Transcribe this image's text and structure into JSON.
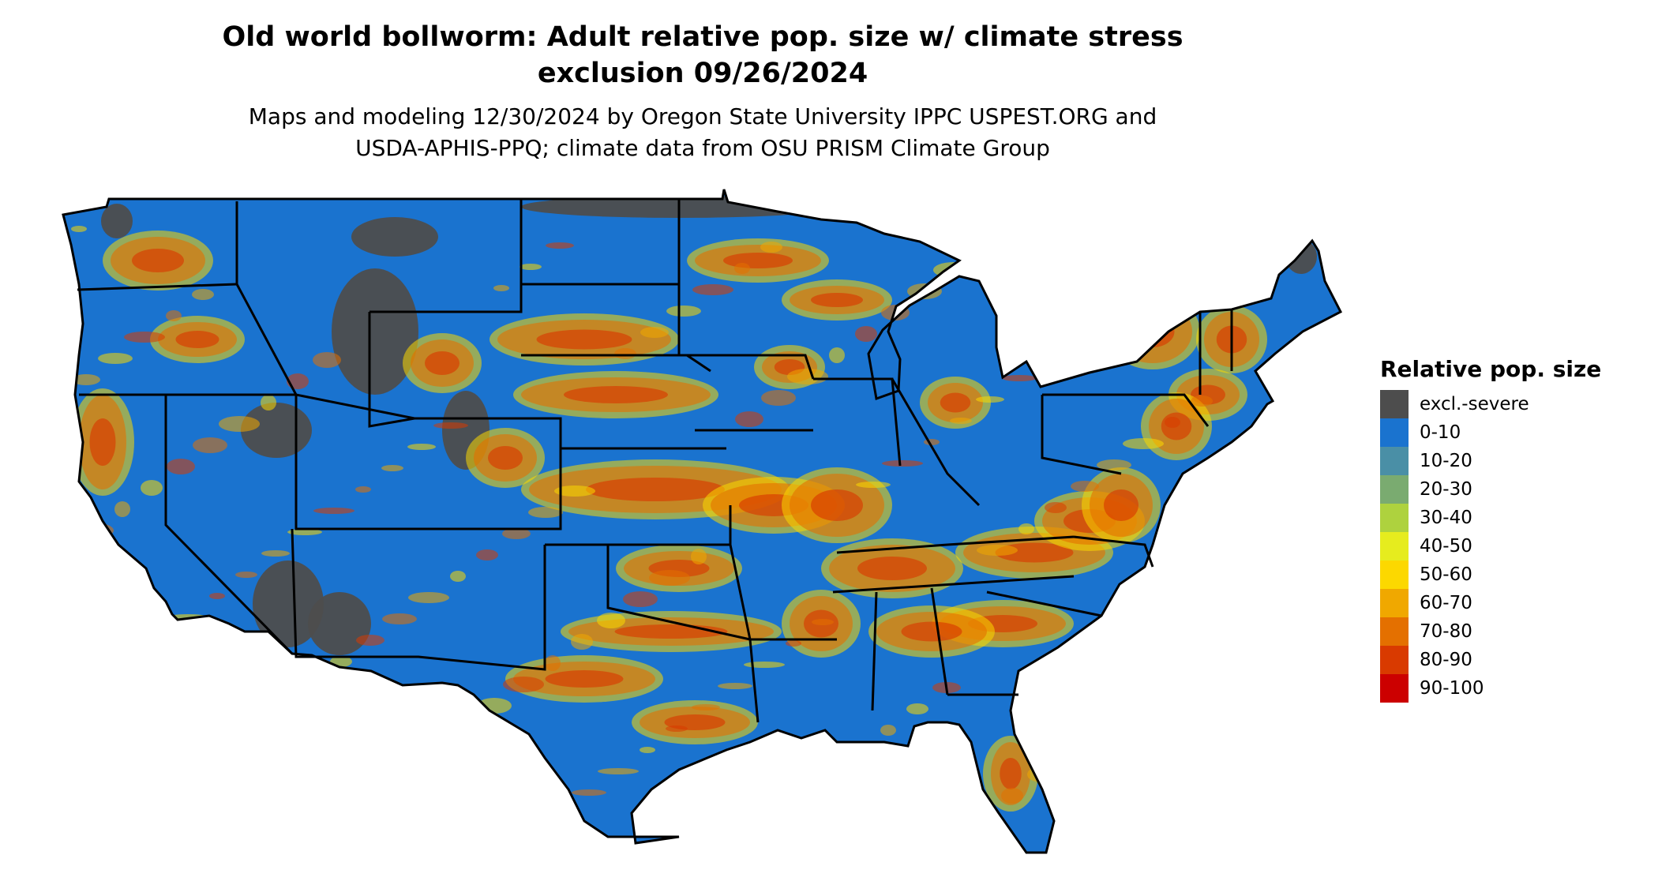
{
  "title_line1": "Old world bollworm: Adult relative pop. size w/ climate stress",
  "title_line2": "exclusion 09/26/2024",
  "subtitle_line1": "Maps and modeling 12/30/2024 by Oregon State University IPPC USPEST.ORG and",
  "subtitle_line2": "USDA-APHIS-PPQ; climate data from OSU PRISM Climate Group",
  "legend": {
    "title": "Relative pop. size",
    "items": [
      {
        "label": "excl.-severe",
        "color": "#4d4d4d"
      },
      {
        "label": "0-10",
        "color": "#1a73cf"
      },
      {
        "label": "10-20",
        "color": "#4a8fa6"
      },
      {
        "label": "20-30",
        "color": "#7aab70"
      },
      {
        "label": "30-40",
        "color": "#aed23e"
      },
      {
        "label": "40-50",
        "color": "#e6ec1e"
      },
      {
        "label": "50-60",
        "color": "#fcd800"
      },
      {
        "label": "60-70",
        "color": "#f0a800"
      },
      {
        "label": "70-80",
        "color": "#e47000"
      },
      {
        "label": "80-90",
        "color": "#d93a00"
      },
      {
        "label": "90-100",
        "color": "#cc0000"
      }
    ]
  },
  "map": {
    "region": "Contiguous United States",
    "base_color": "#1a73cf",
    "border_color": "#000000",
    "excluded_color": "#4d4d4d"
  }
}
